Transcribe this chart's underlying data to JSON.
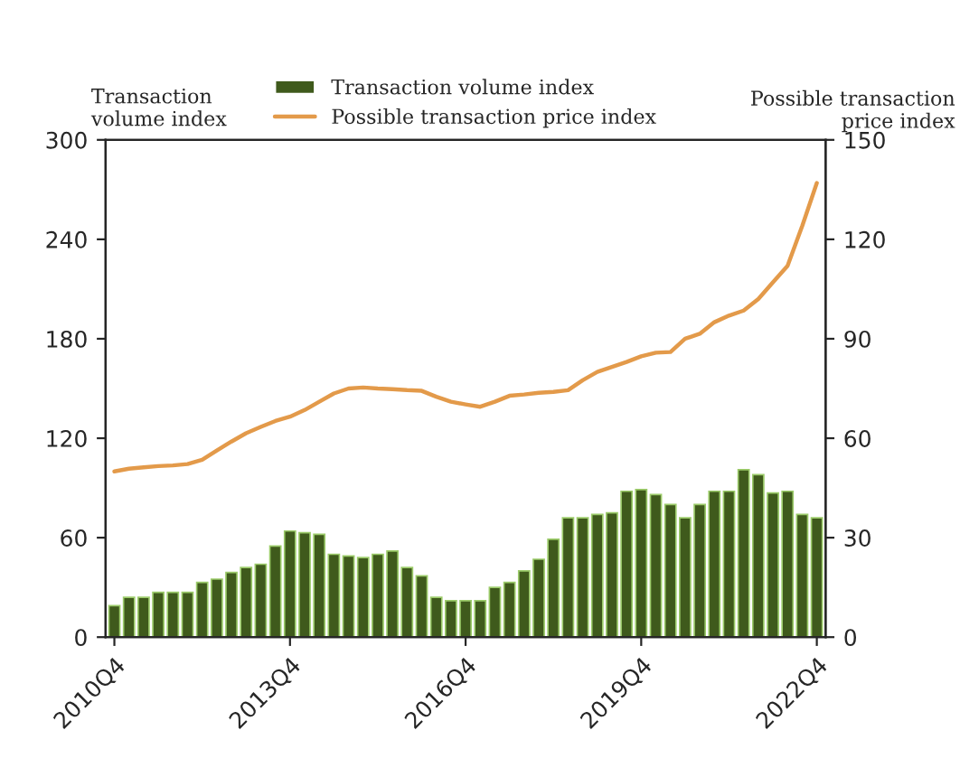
{
  "chart_data": {
    "type": "bar",
    "categories": [
      "2010Q4",
      null,
      null,
      null,
      null,
      null,
      null,
      null,
      null,
      null,
      null,
      null,
      "2013Q4",
      null,
      null,
      null,
      null,
      null,
      null,
      null,
      null,
      null,
      null,
      null,
      "2016Q4",
      null,
      null,
      null,
      null,
      null,
      null,
      null,
      null,
      null,
      null,
      null,
      "2019Q4",
      null,
      null,
      null,
      null,
      null,
      null,
      null,
      null,
      null,
      null,
      null,
      "2022Q4"
    ],
    "ylabel": "Transaction\nvolume index",
    "y2label": "Possible transaction\nprice index",
    "ylim": [
      0,
      300
    ],
    "yticks": [
      0,
      60,
      120,
      180,
      240,
      300
    ],
    "y2lim": [
      0,
      150
    ],
    "y2ticks": [
      0,
      30,
      60,
      90,
      120,
      150
    ],
    "legend": "top",
    "grid": false,
    "series": [
      {
        "name": "Transaction volume index",
        "color": "#3f5a1c",
        "values": [
          19,
          24,
          24,
          27,
          27,
          27,
          33,
          35,
          39,
          42,
          44,
          55,
          64,
          63,
          62,
          50,
          49,
          48,
          50,
          52,
          42,
          37,
          24,
          22,
          22,
          22,
          30,
          33,
          40,
          47,
          59,
          72,
          72,
          74,
          75,
          88,
          89,
          86,
          80,
          72,
          80,
          88,
          88,
          101,
          98,
          87,
          88,
          74,
          72
        ]
      },
      {
        "name": "Possible transaction price index",
        "type": "line",
        "axis": "y2",
        "color": "#e39a4a",
        "values": [
          50,
          50.8,
          51.2,
          51.6,
          51.8,
          52.2,
          53.5,
          56.3,
          59,
          61.5,
          63.4,
          65.2,
          66.5,
          68.5,
          71,
          73.5,
          75,
          75.3,
          75,
          74.8,
          74.5,
          74.3,
          72.5,
          71,
          70.2,
          69.5,
          71,
          72.8,
          73.2,
          73.7,
          74,
          74.5,
          77.5,
          80,
          81.5,
          83,
          84.7,
          85.8,
          86,
          90,
          91.5,
          95,
          97,
          98.5,
          102,
          107,
          112,
          124,
          137
        ]
      }
    ]
  }
}
